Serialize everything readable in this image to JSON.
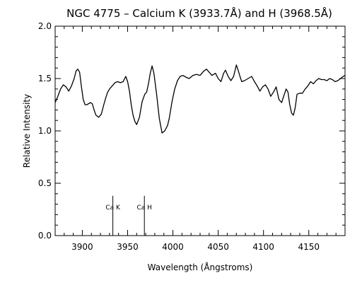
{
  "chart_data": {
    "type": "line",
    "title": "NGC 4775 – Calcium K (3933.7Å) and H (3968.5Å)",
    "xlabel": "Wavelength (Ångstroms)",
    "ylabel": "Relative Intensity",
    "xlim": [
      3870,
      4190
    ],
    "ylim": [
      0,
      2.0
    ],
    "x_ticks": [
      3900,
      3950,
      4000,
      4050,
      4100,
      4150
    ],
    "x_tick_labels": [
      "3900",
      "3950",
      "4000",
      "4050",
      "4100",
      "4150"
    ],
    "y_ticks": [
      0,
      0.5,
      1.0,
      1.5,
      2.0
    ],
    "y_tick_labels": [
      "0.0",
      "0.5",
      "1.0",
      "1.5",
      "2.0"
    ],
    "grid": false,
    "line_color": "#000000",
    "series": [
      {
        "x": [
          3870,
          3873,
          3876,
          3879,
          3882,
          3885,
          3888,
          3891,
          3893,
          3895,
          3897,
          3899,
          3901,
          3903,
          3905,
          3907,
          3909,
          3911,
          3913,
          3915,
          3918,
          3921,
          3924,
          3926,
          3928,
          3930,
          3933,
          3936,
          3939,
          3942,
          3945,
          3948,
          3950,
          3952,
          3954,
          3956,
          3958,
          3960,
          3963,
          3966,
          3969,
          3971,
          3973,
          3975,
          3977,
          3979,
          3982,
          3985,
          3988,
          3991,
          3994,
          3996,
          3999,
          4002,
          4005,
          4008,
          4011,
          4015,
          4018,
          4022,
          4026,
          4030,
          4034,
          4037,
          4040,
          4043,
          4047,
          4050,
          4053,
          4056,
          4058,
          4061,
          4064,
          4067,
          4070,
          4072,
          4074,
          4076,
          4079,
          4083,
          4087,
          4090,
          4093,
          4096,
          4099,
          4102,
          4105,
          4108,
          4111,
          4114,
          4117,
          4120,
          4123,
          4125,
          4127,
          4129,
          4131,
          4133,
          4135,
          4137,
          4140,
          4143,
          4146,
          4149,
          4152,
          4155,
          4158,
          4161,
          4164,
          4167,
          4170,
          4173,
          4176,
          4179,
          4182,
          4185,
          4188,
          4190
        ],
        "y": [
          1.27,
          1.33,
          1.4,
          1.44,
          1.42,
          1.38,
          1.43,
          1.5,
          1.57,
          1.59,
          1.56,
          1.42,
          1.3,
          1.25,
          1.25,
          1.26,
          1.27,
          1.26,
          1.2,
          1.15,
          1.13,
          1.16,
          1.26,
          1.32,
          1.37,
          1.4,
          1.43,
          1.46,
          1.47,
          1.46,
          1.47,
          1.52,
          1.47,
          1.38,
          1.25,
          1.15,
          1.09,
          1.06,
          1.13,
          1.28,
          1.35,
          1.37,
          1.45,
          1.55,
          1.62,
          1.55,
          1.35,
          1.12,
          0.98,
          1.0,
          1.05,
          1.12,
          1.28,
          1.4,
          1.48,
          1.52,
          1.53,
          1.51,
          1.5,
          1.53,
          1.54,
          1.53,
          1.57,
          1.59,
          1.56,
          1.53,
          1.55,
          1.5,
          1.47,
          1.55,
          1.58,
          1.52,
          1.48,
          1.52,
          1.63,
          1.58,
          1.52,
          1.47,
          1.48,
          1.5,
          1.52,
          1.47,
          1.43,
          1.38,
          1.42,
          1.44,
          1.4,
          1.33,
          1.37,
          1.42,
          1.3,
          1.27,
          1.35,
          1.4,
          1.37,
          1.25,
          1.17,
          1.15,
          1.22,
          1.35,
          1.36,
          1.36,
          1.4,
          1.43,
          1.47,
          1.45,
          1.48,
          1.5,
          1.49,
          1.49,
          1.48,
          1.5,
          1.49,
          1.47,
          1.48,
          1.5,
          1.52,
          1.53
        ]
      }
    ],
    "markers": [
      {
        "label": "Ca K",
        "x": 3933.7,
        "height": 0.38
      },
      {
        "label": "Ca H",
        "x": 3968.5,
        "height": 0.38
      }
    ]
  }
}
